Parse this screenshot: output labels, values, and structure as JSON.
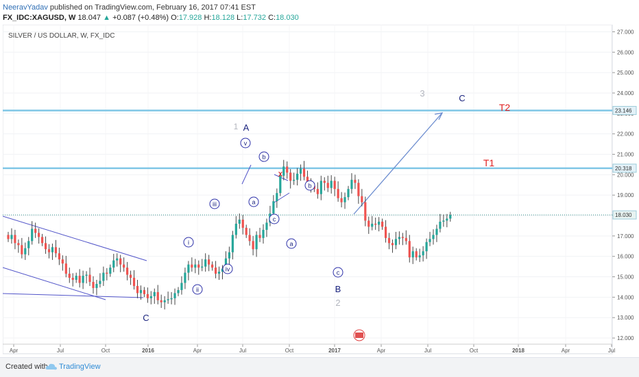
{
  "header": {
    "author": "NeeravYadav",
    "published_text": "published on TradingView.com, February 16, 2017 07:41 EST"
  },
  "symbol_bar": {
    "symbol": "FX_IDC:XAGUSD, W",
    "last": "18.047",
    "change": "+0.087 (+0.48%)",
    "o_label": "O:",
    "o_value": "17.928",
    "h_label": "H:",
    "h_value": "18.128",
    "l_label": "L:",
    "l_value": "17.732",
    "c_label": "C:",
    "c_value": "18.030"
  },
  "chart_data": {
    "type": "candlestick",
    "title": "SILVER / US DOLLAR, W, FX_IDC",
    "y_range": [
      11.7,
      27.35
    ],
    "y_ticks": [
      "12.000",
      "13.000",
      "14.000",
      "15.000",
      "16.000",
      "17.000",
      "18.000",
      "19.000",
      "20.000",
      "21.000",
      "22.000",
      "23.000",
      "24.000",
      "25.000",
      "26.000",
      "27.000"
    ],
    "x_ticks": [
      "Apr",
      "Jul",
      "Oct",
      "2016",
      "Apr",
      "Jul",
      "Oct",
      "2017",
      "Apr",
      "Jul",
      "Oct",
      "2018",
      "Apr",
      "Jul"
    ],
    "price_tags": [
      {
        "value": 23.146,
        "label": "23.146"
      },
      {
        "value": 20.318,
        "label": "20.318"
      },
      {
        "value": 18.03,
        "label": "18.030"
      }
    ],
    "levels": [
      {
        "name": "T2",
        "value": 23.146
      },
      {
        "name": "T1",
        "value": 20.318
      }
    ],
    "last_price": 18.03,
    "closes": [
      16.85,
      17.05,
      16.65,
      16.55,
      16.1,
      16.4,
      16.75,
      17.35,
      17.15,
      16.95,
      16.65,
      16.35,
      16.2,
      16.45,
      16.15,
      15.85,
      15.65,
      15.15,
      14.95,
      14.85,
      15.05,
      14.7,
      15.05,
      15.1,
      14.75,
      14.45,
      14.65,
      14.8,
      15.2,
      15.15,
      15.45,
      15.8,
      15.9,
      15.6,
      15.45,
      15.1,
      14.95,
      14.55,
      14.2,
      14.35,
      14.15,
      13.95,
      14.05,
      14.25,
      13.85,
      13.75,
      13.85,
      13.9,
      13.95,
      14.2,
      14.35,
      14.7,
      15.2,
      15.6,
      15.45,
      15.6,
      15.45,
      15.5,
      15.85,
      15.6,
      15.45,
      15.15,
      15.25,
      15.4,
      15.9,
      16.2,
      17.05,
      17.6,
      17.8,
      17.4,
      17.05,
      16.75,
      16.35,
      17.05,
      16.9,
      17.3,
      17.65,
      18.1,
      18.7,
      19.1,
      19.95,
      20.4,
      20.1,
      19.7,
      19.75,
      20.05,
      20.3,
      19.9,
      19.6,
      19.45,
      19.3,
      19.05,
      19.7,
      19.6,
      19.35,
      19.7,
      19.3,
      18.85,
      18.65,
      18.9,
      19.3,
      19.75,
      19.6,
      18.95,
      18.65,
      17.75,
      17.45,
      17.6,
      17.55,
      17.7,
      17.45,
      16.9,
      16.65,
      16.55,
      16.85,
      16.95,
      16.9,
      16.75,
      15.95,
      16.25,
      15.95,
      16.05,
      16.25,
      16.7,
      16.85,
      17.05,
      17.35,
      17.7,
      17.75,
      17.85,
      18.03
    ],
    "annotations": [
      {
        "text": "1",
        "color": "#b2b5be"
      },
      {
        "text": "A",
        "color": "#1a237e"
      },
      {
        "text": "3",
        "color": "#b2b5be"
      },
      {
        "text": "C",
        "color": "#1a237e"
      },
      {
        "text": "2",
        "color": "#b2b5be"
      },
      {
        "text": "B",
        "color": "#1a237e"
      },
      {
        "text": "C",
        "color": "#1a237e"
      },
      {
        "text": "T2",
        "color": "#e02020"
      },
      {
        "text": "T1",
        "color": "#e02020"
      },
      {
        "text": "x",
        "color": "#e02020"
      }
    ],
    "circled_labels": [
      "i",
      "ii",
      "iii",
      "iv",
      "v",
      "a",
      "b",
      "c",
      "a",
      "b",
      "c"
    ],
    "colors": {
      "up": "#26a69a",
      "down": "#ef5350",
      "wick": "#444444",
      "level": "#7fc6e6",
      "trend": "#4f52c8",
      "arrow": "#6b8ccf",
      "last": "#2f8f86"
    }
  },
  "footer": {
    "created": "Created with",
    "brand": "TradingView"
  }
}
